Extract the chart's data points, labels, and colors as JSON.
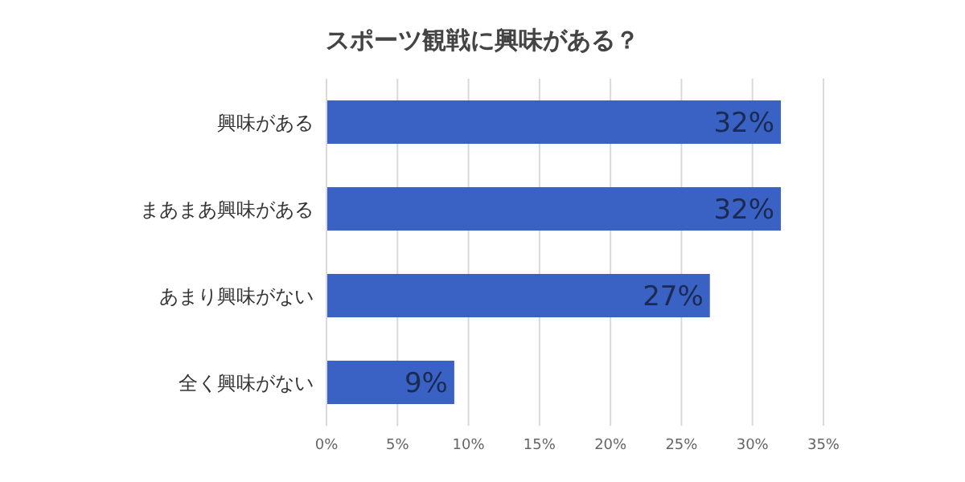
{
  "chart_data": {
    "type": "bar",
    "orientation": "horizontal",
    "title": "スポーツ観戦に興味がある？",
    "categories": [
      "興味がある",
      "まあまあ興味がある",
      "あまり興味がない",
      "全く興味がない"
    ],
    "values": [
      32,
      32,
      27,
      9
    ],
    "color": "#3a62c4",
    "value_labels": [
      "32%",
      "32%",
      "27%",
      "9%"
    ],
    "xlim": [
      0,
      35
    ],
    "xticks": [
      {
        "value": 0,
        "label": "0%"
      },
      {
        "value": 5,
        "label": "5%"
      },
      {
        "value": 10,
        "label": "10%"
      },
      {
        "value": 15,
        "label": "15%"
      },
      {
        "value": 20,
        "label": "20%"
      },
      {
        "value": 25,
        "label": "25%"
      },
      {
        "value": 30,
        "label": "30%"
      },
      {
        "value": 35,
        "label": "35%"
      }
    ],
    "grid": "x"
  }
}
